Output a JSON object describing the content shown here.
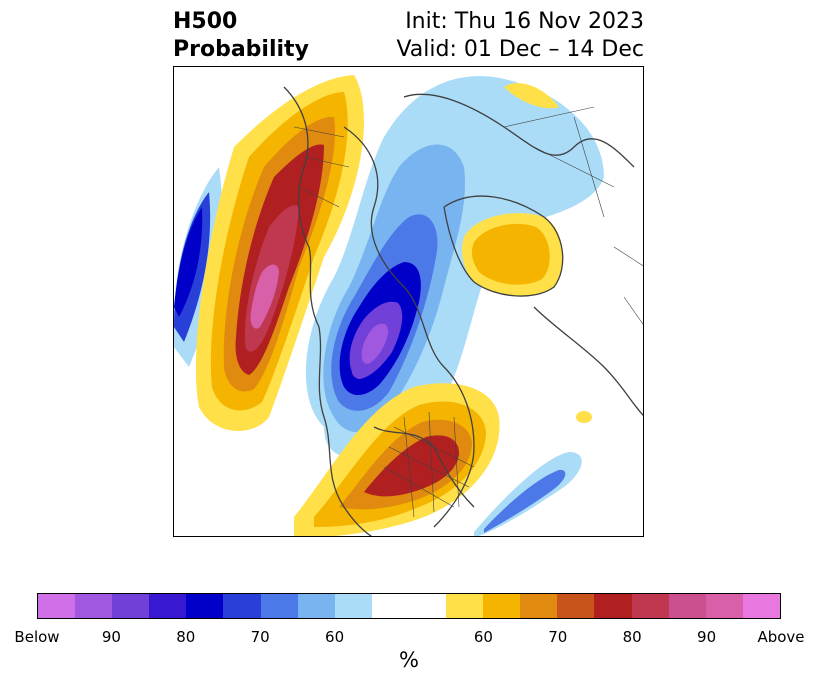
{
  "header": {
    "title_line1": "H500",
    "title_line2": "Probability",
    "init_text": "Init: Thu 16 Nov 2023",
    "valid_text": "Valid: 01 Dec – 14 Dec"
  },
  "colorbar": {
    "units": "%",
    "segments": [
      "#d070e8",
      "#a058e0",
      "#7040d8",
      "#3818d0",
      "#0000c8",
      "#2840d8",
      "#4c78e8",
      "#78b4f0",
      "#aadcf8",
      "#ffffff",
      "#ffffff",
      "#ffe048",
      "#f4b400",
      "#e08a10",
      "#c8541c",
      "#b02020",
      "#c03850",
      "#cc5090",
      "#d860a8",
      "#e878e0"
    ],
    "ticks": [
      "Below",
      "90",
      "80",
      "70",
      "60",
      "60",
      "70",
      "80",
      "90",
      "Above"
    ]
  }
}
